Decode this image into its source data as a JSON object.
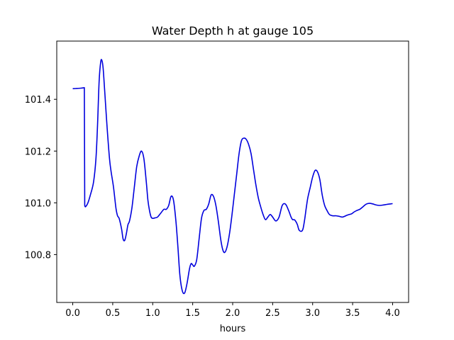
{
  "chart_data": {
    "type": "line",
    "title": "Water Depth h at gauge 105",
    "xlabel": "hours",
    "ylabel": "",
    "xlim": [
      -0.2,
      4.2
    ],
    "ylim": [
      100.615,
      101.625
    ],
    "x_ticks": [
      0.0,
      0.5,
      1.0,
      1.5,
      2.0,
      2.5,
      3.0,
      3.5,
      4.0
    ],
    "x_tick_labels": [
      "0.0",
      "0.5",
      "1.0",
      "1.5",
      "2.0",
      "2.5",
      "3.0",
      "3.5",
      "4.0"
    ],
    "y_ticks": [
      100.8,
      101.0,
      101.2,
      101.4
    ],
    "y_tick_labels": [
      "100.8",
      "101.0",
      "101.2",
      "101.4"
    ],
    "grid": false,
    "legend": "none",
    "series": [
      {
        "color": "#0000dd",
        "x": [
          0.0,
          0.05,
          0.1,
          0.145,
          0.15,
          0.16,
          0.19,
          0.22,
          0.26,
          0.29,
          0.31,
          0.33,
          0.35,
          0.365,
          0.38,
          0.4,
          0.43,
          0.46,
          0.48,
          0.51,
          0.54,
          0.56,
          0.58,
          0.61,
          0.63,
          0.65,
          0.67,
          0.69,
          0.71,
          0.74,
          0.77,
          0.8,
          0.83,
          0.86,
          0.89,
          0.92,
          0.94,
          0.96,
          0.98,
          1.0,
          1.03,
          1.06,
          1.1,
          1.14,
          1.17,
          1.2,
          1.23,
          1.26,
          1.29,
          1.315,
          1.34,
          1.37,
          1.4,
          1.43,
          1.46,
          1.48,
          1.5,
          1.52,
          1.55,
          1.58,
          1.61,
          1.64,
          1.67,
          1.7,
          1.73,
          1.76,
          1.79,
          1.82,
          1.85,
          1.875,
          1.9,
          1.93,
          1.96,
          1.99,
          2.02,
          2.05,
          2.08,
          2.11,
          2.14,
          2.17,
          2.2,
          2.23,
          2.26,
          2.29,
          2.32,
          2.35,
          2.38,
          2.41,
          2.44,
          2.47,
          2.5,
          2.54,
          2.58,
          2.62,
          2.66,
          2.7,
          2.73,
          2.75,
          2.77,
          2.79,
          2.81,
          2.83,
          2.86,
          2.88,
          2.9,
          2.92,
          2.94,
          2.97,
          3.0,
          3.03,
          3.06,
          3.09,
          3.12,
          3.15,
          3.18,
          3.21,
          3.25,
          3.29,
          3.33,
          3.37,
          3.4,
          3.43,
          3.46,
          3.49,
          3.52,
          3.55,
          3.59,
          3.63,
          3.67,
          3.71,
          3.75,
          3.79,
          3.83,
          3.87,
          3.91,
          3.95,
          3.98,
          4.0
        ],
        "y": [
          101.441,
          101.442,
          101.443,
          101.445,
          100.99,
          100.985,
          101.0,
          101.03,
          101.08,
          101.17,
          101.3,
          101.47,
          101.545,
          101.55,
          101.52,
          101.43,
          101.29,
          101.17,
          101.12,
          101.06,
          100.98,
          100.95,
          100.94,
          100.9,
          100.86,
          100.855,
          100.88,
          100.915,
          100.93,
          100.98,
          101.06,
          101.14,
          101.18,
          101.2,
          101.17,
          101.08,
          101.01,
          100.97,
          100.945,
          100.94,
          100.942,
          100.945,
          100.96,
          100.975,
          100.975,
          100.99,
          101.025,
          101.01,
          100.93,
          100.83,
          100.72,
          100.66,
          100.652,
          100.69,
          100.745,
          100.765,
          100.76,
          100.755,
          100.78,
          100.86,
          100.94,
          100.97,
          100.975,
          100.995,
          101.03,
          101.025,
          100.99,
          100.93,
          100.86,
          100.82,
          100.808,
          100.83,
          100.88,
          100.95,
          101.03,
          101.11,
          101.19,
          101.24,
          101.25,
          101.245,
          101.225,
          101.19,
          101.13,
          101.07,
          101.02,
          100.985,
          100.955,
          100.935,
          100.945,
          100.955,
          100.945,
          100.93,
          100.945,
          100.99,
          100.995,
          100.97,
          100.945,
          100.935,
          100.935,
          100.928,
          100.915,
          100.895,
          100.89,
          100.9,
          100.935,
          100.98,
          101.02,
          101.06,
          101.1,
          101.125,
          101.12,
          101.09,
          101.03,
          100.99,
          100.97,
          100.955,
          100.95,
          100.95,
          100.948,
          100.945,
          100.948,
          100.952,
          100.955,
          100.958,
          100.965,
          100.97,
          100.975,
          100.985,
          100.995,
          100.998,
          100.996,
          100.992,
          100.99,
          100.991,
          100.993,
          100.995,
          100.996,
          100.997
        ]
      }
    ]
  }
}
